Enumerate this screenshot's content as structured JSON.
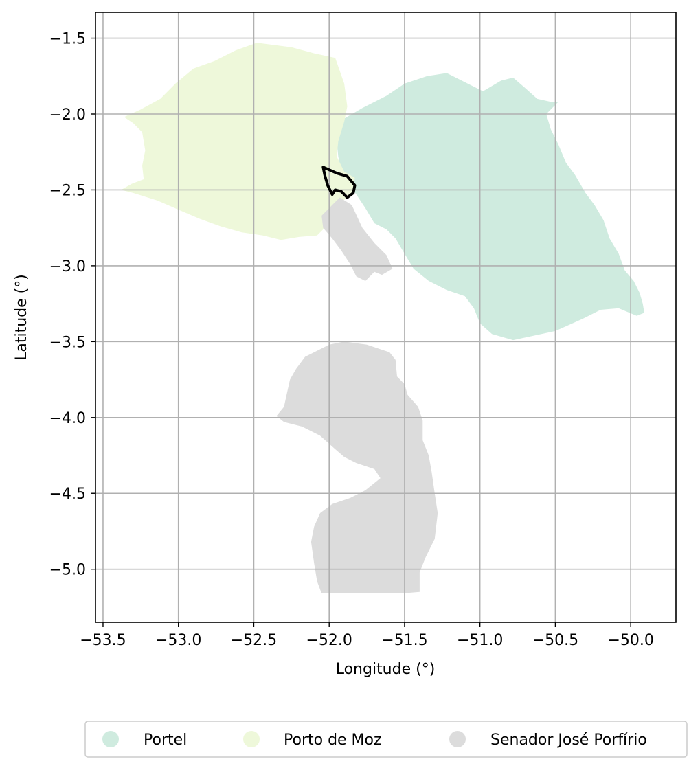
{
  "chart_data": {
    "type": "map",
    "xlabel": "Longitude (°)",
    "ylabel": "Latitude (°)",
    "xlim": [
      -53.55,
      -49.7
    ],
    "ylim": [
      -5.35,
      -1.33
    ],
    "x_ticks": [
      -53.5,
      -53.0,
      -52.5,
      -52.0,
      -51.5,
      -51.0,
      -50.5,
      -50.0
    ],
    "x_tick_labels": [
      "−53.5",
      "−53.0",
      "−52.5",
      "−52.0",
      "−51.5",
      "−51.0",
      "−50.5",
      "−50.0"
    ],
    "y_ticks": [
      -1.5,
      -2.0,
      -2.5,
      -3.0,
      -3.5,
      -4.0,
      -4.5,
      -5.0
    ],
    "y_tick_labels": [
      "−1.5",
      "−2.0",
      "−2.5",
      "−3.0",
      "−3.5",
      "−4.0",
      "−4.5",
      "−5.0"
    ],
    "grid": true,
    "legend_position": "bottom-center",
    "regions": [
      {
        "name": "Portel",
        "color": "#cfebdf",
        "polygons": [
          [
            [
              -51.9,
              -2.03
            ],
            [
              -51.78,
              -1.96
            ],
            [
              -51.62,
              -1.88
            ],
            [
              -51.5,
              -1.8
            ],
            [
              -51.35,
              -1.75
            ],
            [
              -51.22,
              -1.73
            ],
            [
              -51.1,
              -1.79
            ],
            [
              -50.98,
              -1.85
            ],
            [
              -50.86,
              -1.78
            ],
            [
              -50.78,
              -1.76
            ],
            [
              -50.71,
              -1.82
            ],
            [
              -50.62,
              -1.9
            ],
            [
              -50.53,
              -1.92
            ],
            [
              -50.48,
              -1.92
            ],
            [
              -50.56,
              -2.0
            ],
            [
              -50.53,
              -2.1
            ],
            [
              -50.48,
              -2.2
            ],
            [
              -50.43,
              -2.32
            ],
            [
              -50.37,
              -2.4
            ],
            [
              -50.3,
              -2.52
            ],
            [
              -50.24,
              -2.6
            ],
            [
              -50.18,
              -2.7
            ],
            [
              -50.14,
              -2.82
            ],
            [
              -50.08,
              -2.92
            ],
            [
              -50.04,
              -3.03
            ],
            [
              -49.98,
              -3.1
            ],
            [
              -49.94,
              -3.18
            ],
            [
              -49.92,
              -3.25
            ],
            [
              -49.91,
              -3.31
            ],
            [
              -49.96,
              -3.33
            ],
            [
              -50.08,
              -3.28
            ],
            [
              -50.2,
              -3.29
            ],
            [
              -50.32,
              -3.35
            ],
            [
              -50.5,
              -3.43
            ],
            [
              -50.78,
              -3.49
            ],
            [
              -50.92,
              -3.45
            ],
            [
              -51.0,
              -3.38
            ],
            [
              -51.04,
              -3.28
            ],
            [
              -51.1,
              -3.2
            ],
            [
              -51.22,
              -3.16
            ],
            [
              -51.34,
              -3.1
            ],
            [
              -51.44,
              -3.02
            ],
            [
              -51.5,
              -2.92
            ],
            [
              -51.56,
              -2.82
            ],
            [
              -51.62,
              -2.76
            ],
            [
              -51.7,
              -2.72
            ],
            [
              -51.76,
              -2.62
            ],
            [
              -51.82,
              -2.53
            ],
            [
              -51.88,
              -2.45
            ],
            [
              -51.92,
              -2.38
            ],
            [
              -51.94,
              -2.28
            ],
            [
              -51.95,
              -2.18
            ],
            [
              -51.93,
              -2.1
            ]
          ]
        ]
      },
      {
        "name": "Porto de Moz",
        "color": "#eef8da",
        "polygons": [
          [
            [
              -53.36,
              -2.02
            ],
            [
              -53.25,
              -1.97
            ],
            [
              -53.12,
              -1.9
            ],
            [
              -53.02,
              -1.8
            ],
            [
              -52.9,
              -1.7
            ],
            [
              -52.76,
              -1.65
            ],
            [
              -52.62,
              -1.58
            ],
            [
              -52.48,
              -1.53
            ],
            [
              -52.25,
              -1.56
            ],
            [
              -52.1,
              -1.6
            ],
            [
              -51.96,
              -1.63
            ],
            [
              -51.9,
              -1.8
            ],
            [
              -51.88,
              -1.95
            ],
            [
              -51.9,
              -2.05
            ],
            [
              -51.94,
              -2.18
            ],
            [
              -51.95,
              -2.28
            ],
            [
              -51.9,
              -2.38
            ],
            [
              -51.83,
              -2.42
            ],
            [
              -51.84,
              -2.52
            ],
            [
              -51.92,
              -2.58
            ],
            [
              -51.96,
              -2.66
            ],
            [
              -52.02,
              -2.74
            ],
            [
              -52.08,
              -2.8
            ],
            [
              -52.2,
              -2.81
            ],
            [
              -52.32,
              -2.83
            ],
            [
              -52.44,
              -2.8
            ],
            [
              -52.58,
              -2.78
            ],
            [
              -52.72,
              -2.74
            ],
            [
              -52.86,
              -2.69
            ],
            [
              -53.0,
              -2.63
            ],
            [
              -53.14,
              -2.57
            ],
            [
              -53.3,
              -2.52
            ],
            [
              -53.38,
              -2.5
            ],
            [
              -53.31,
              -2.46
            ],
            [
              -53.23,
              -2.43
            ],
            [
              -53.24,
              -2.34
            ],
            [
              -53.22,
              -2.24
            ],
            [
              -53.24,
              -2.12
            ],
            [
              -53.3,
              -2.06
            ]
          ]
        ]
      },
      {
        "name": "Senador José Porfírio",
        "color": "#dcdcdc",
        "polygons": [
          [
            [
              -51.93,
              -2.55
            ],
            [
              -51.85,
              -2.6
            ],
            [
              -51.78,
              -2.75
            ],
            [
              -51.7,
              -2.85
            ],
            [
              -51.62,
              -2.93
            ],
            [
              -51.58,
              -3.02
            ],
            [
              -51.65,
              -3.06
            ],
            [
              -51.7,
              -3.04
            ],
            [
              -51.76,
              -3.1
            ],
            [
              -51.82,
              -3.07
            ],
            [
              -51.86,
              -2.99
            ],
            [
              -51.92,
              -2.9
            ],
            [
              -51.98,
              -2.82
            ],
            [
              -52.04,
              -2.75
            ],
            [
              -52.05,
              -2.67
            ],
            [
              -51.98,
              -2.6
            ]
          ],
          [
            [
              -52.0,
              -3.52
            ],
            [
              -51.9,
              -3.5
            ],
            [
              -51.75,
              -3.52
            ],
            [
              -51.6,
              -3.57
            ],
            [
              -51.56,
              -3.62
            ],
            [
              -51.55,
              -3.73
            ],
            [
              -51.5,
              -3.78
            ],
            [
              -51.48,
              -3.85
            ],
            [
              -51.41,
              -3.93
            ],
            [
              -51.38,
              -4.02
            ],
            [
              -51.38,
              -4.15
            ],
            [
              -51.34,
              -4.25
            ],
            [
              -51.32,
              -4.36
            ],
            [
              -51.3,
              -4.5
            ],
            [
              -51.28,
              -4.63
            ],
            [
              -51.3,
              -4.8
            ],
            [
              -51.36,
              -4.92
            ],
            [
              -51.4,
              -5.02
            ],
            [
              -51.4,
              -5.15
            ],
            [
              -51.52,
              -5.16
            ],
            [
              -51.75,
              -5.16
            ],
            [
              -52.05,
              -5.16
            ],
            [
              -52.08,
              -5.08
            ],
            [
              -52.1,
              -4.96
            ],
            [
              -52.12,
              -4.82
            ],
            [
              -52.1,
              -4.72
            ],
            [
              -52.06,
              -4.63
            ],
            [
              -51.98,
              -4.57
            ],
            [
              -51.86,
              -4.53
            ],
            [
              -51.76,
              -4.48
            ],
            [
              -51.66,
              -4.4
            ],
            [
              -51.7,
              -4.34
            ],
            [
              -51.82,
              -4.3
            ],
            [
              -51.9,
              -4.26
            ],
            [
              -51.97,
              -4.2
            ],
            [
              -52.06,
              -4.12
            ],
            [
              -52.18,
              -4.06
            ],
            [
              -52.3,
              -4.03
            ],
            [
              -52.35,
              -3.99
            ],
            [
              -52.3,
              -3.93
            ],
            [
              -52.28,
              -3.84
            ],
            [
              -52.26,
              -3.75
            ],
            [
              -52.22,
              -3.68
            ],
            [
              -52.16,
              -3.6
            ],
            [
              -52.08,
              -3.56
            ]
          ]
        ]
      }
    ],
    "outline": {
      "color": "#000000",
      "points": [
        [
          -52.04,
          -2.35
        ],
        [
          -51.95,
          -2.39
        ],
        [
          -51.88,
          -2.41
        ],
        [
          -51.83,
          -2.47
        ],
        [
          -51.84,
          -2.52
        ],
        [
          -51.88,
          -2.55
        ],
        [
          -51.92,
          -2.51
        ],
        [
          -51.96,
          -2.5
        ],
        [
          -51.98,
          -2.53
        ],
        [
          -52.01,
          -2.47
        ],
        [
          -52.03,
          -2.4
        ]
      ]
    },
    "legend": [
      "Portel",
      "Porto de Moz",
      "Senador José Porfírio"
    ]
  }
}
